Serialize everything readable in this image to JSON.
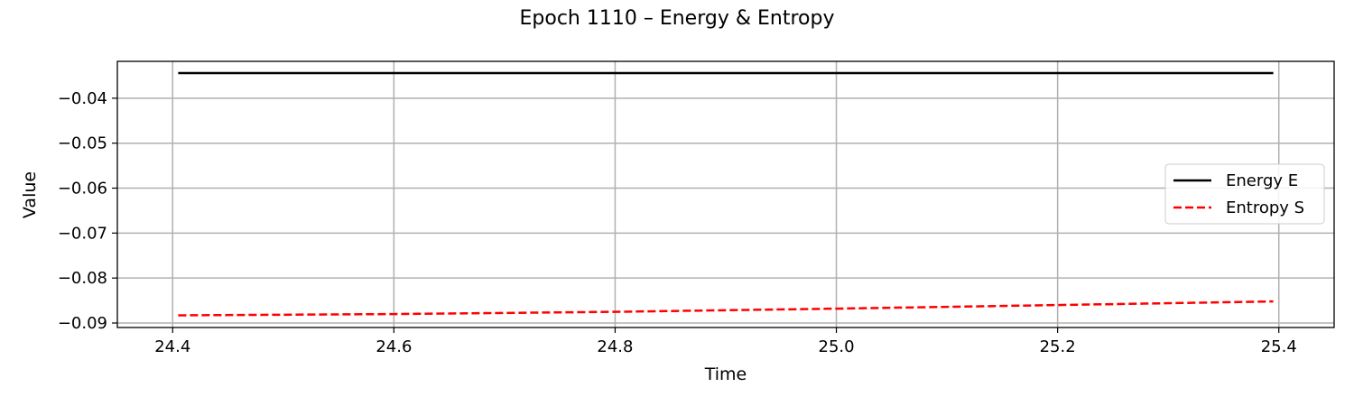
{
  "chart_data": {
    "type": "line",
    "title": "Epoch 1110 – Energy & Entropy",
    "xlabel": "Time",
    "ylabel": "Value",
    "xlim": [
      24.35,
      25.45
    ],
    "ylim": [
      -0.091,
      -0.0318
    ],
    "xticks": [
      24.4,
      24.6,
      24.8,
      25.0,
      25.2,
      25.4
    ],
    "xtick_labels": [
      "24.4",
      "24.6",
      "24.8",
      "25.0",
      "25.2",
      "25.4"
    ],
    "yticks": [
      -0.09,
      -0.08,
      -0.07,
      -0.06,
      -0.05,
      -0.04
    ],
    "ytick_labels": [
      "−0.09",
      "−0.08",
      "−0.07",
      "−0.06",
      "−0.05",
      "−0.04"
    ],
    "grid": true,
    "legend_position": "center-right",
    "series": [
      {
        "name": "Energy E",
        "color": "#000000",
        "style": "solid",
        "x": [
          24.405,
          24.6,
          24.8,
          25.0,
          25.2,
          25.395
        ],
        "y": [
          -0.0344,
          -0.0344,
          -0.0344,
          -0.0344,
          -0.0344,
          -0.0344
        ]
      },
      {
        "name": "Entropy S",
        "color": "#ff0000",
        "style": "dashed",
        "x": [
          24.405,
          24.6,
          24.8,
          25.0,
          25.2,
          25.395
        ],
        "y": [
          -0.0883,
          -0.088,
          -0.0875,
          -0.0868,
          -0.086,
          -0.0852
        ]
      }
    ]
  }
}
